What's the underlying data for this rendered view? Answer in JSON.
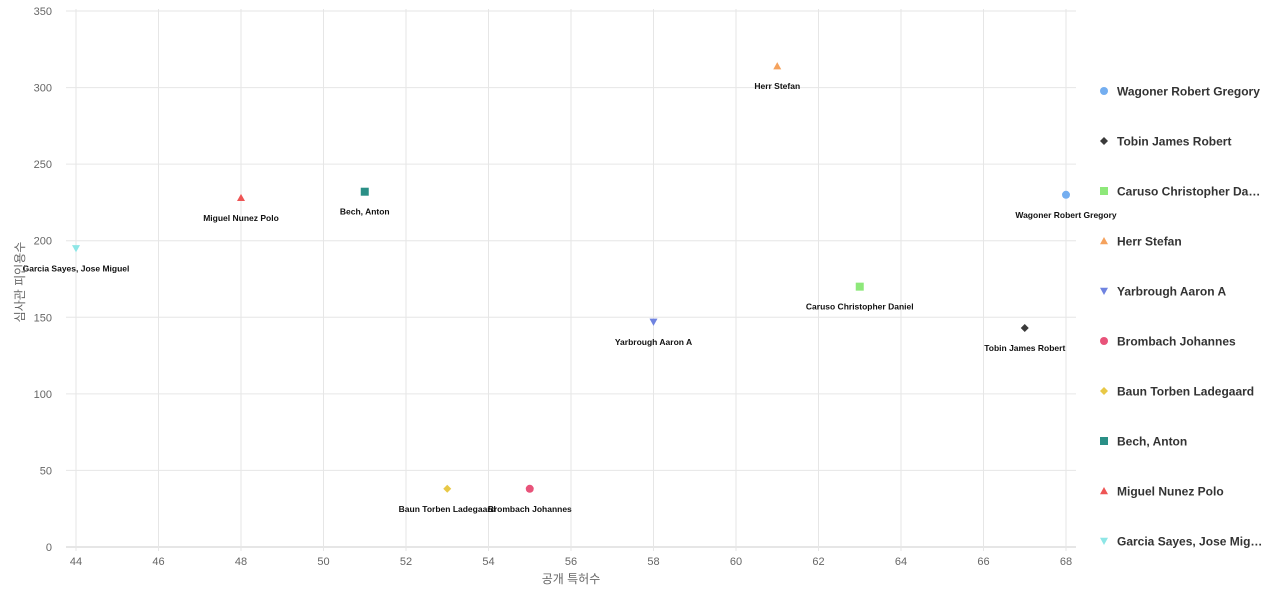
{
  "chart_data": {
    "type": "scatter",
    "xlabel": "공개 특허수",
    "ylabel": "심사관 피인용수",
    "xlim": [
      44,
      68
    ],
    "ylim": [
      0,
      350
    ],
    "x_ticks": [
      44,
      46,
      48,
      50,
      52,
      54,
      56,
      58,
      60,
      62,
      64,
      66,
      68
    ],
    "y_ticks": [
      0,
      50,
      100,
      150,
      200,
      250,
      300,
      350
    ],
    "grid": true,
    "legend_position": "right",
    "series": [
      {
        "name": "Wagoner Robert Gregory",
        "legend_text": "Wagoner Robert Gregory",
        "x": 68,
        "y": 230,
        "marker": "circle",
        "color": "#74aef0"
      },
      {
        "name": "Tobin James Robert",
        "legend_text": "Tobin James Robert",
        "x": 67,
        "y": 143,
        "marker": "diamond",
        "color": "#3a3a3a"
      },
      {
        "name": "Caruso Christopher Daniel",
        "legend_text": "Caruso Christopher Da…",
        "x": 63,
        "y": 170,
        "marker": "square",
        "color": "#8ee87a"
      },
      {
        "name": "Herr Stefan",
        "legend_text": "Herr Stefan",
        "x": 61,
        "y": 314,
        "marker": "triangle-up",
        "color": "#f5a25d"
      },
      {
        "name": "Yarbrough Aaron A",
        "legend_text": "Yarbrough Aaron A",
        "x": 58,
        "y": 147,
        "marker": "triangle-down",
        "color": "#6f83e0"
      },
      {
        "name": "Brombach Johannes",
        "legend_text": "Brombach Johannes",
        "x": 55,
        "y": 38,
        "marker": "circle",
        "color": "#e8537a"
      },
      {
        "name": "Baun Torben Ladegaard",
        "legend_text": "Baun Torben Ladegaard",
        "x": 53,
        "y": 38,
        "marker": "diamond",
        "color": "#e8c846"
      },
      {
        "name": "Bech, Anton",
        "legend_text": "Bech, Anton",
        "x": 51,
        "y": 232,
        "marker": "square",
        "color": "#2a8f86"
      },
      {
        "name": "Miguel Nunez Polo",
        "legend_text": "Miguel Nunez Polo",
        "x": 48,
        "y": 228,
        "marker": "triangle-up",
        "color": "#ee5555"
      },
      {
        "name": "Garcia Sayes, Jose Miguel",
        "legend_text": "Garcia Sayes, Jose Mig…",
        "x": 44,
        "y": 195,
        "marker": "triangle-down",
        "color": "#8ee6e6"
      }
    ]
  }
}
